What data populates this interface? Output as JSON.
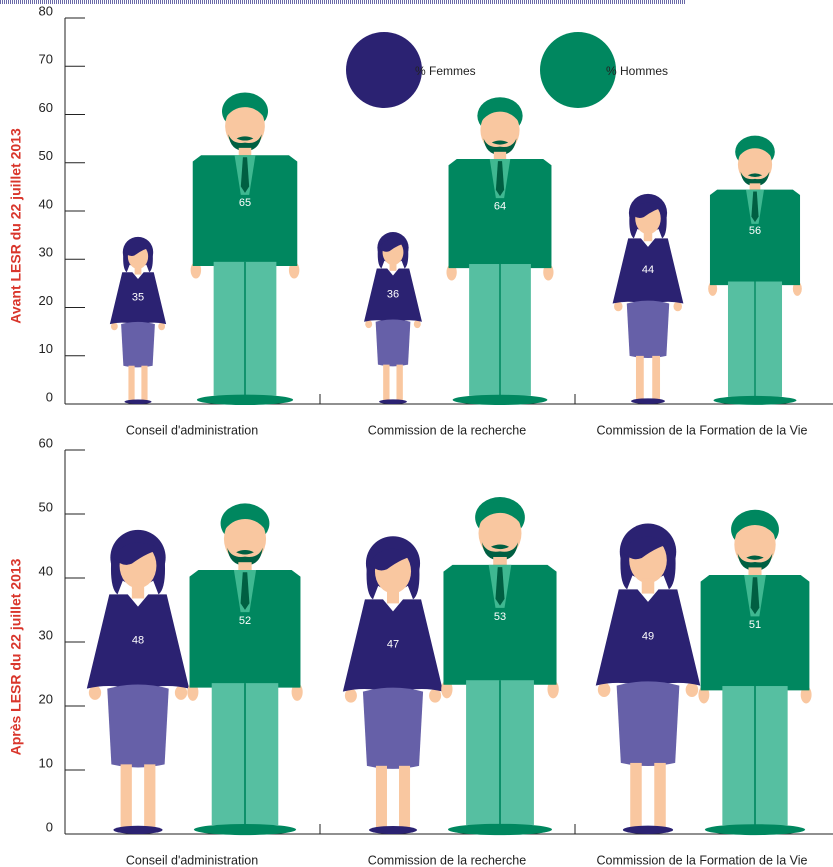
{
  "chart_data": [
    {
      "type": "pictograph",
      "ylabel": "Avant LESR du 22 juillet 2013",
      "categories": [
        "Conseil d'administration",
        "Commission de la recherche",
        "Commission de la Formation de la Vie"
      ],
      "series": [
        {
          "name": "% Femmes",
          "color": "#2b2272",
          "values": [
            35,
            36,
            44
          ]
        },
        {
          "name": "% Hommes",
          "color": "#00875f",
          "values": [
            65,
            64,
            56
          ]
        }
      ],
      "ylim": [
        0,
        80
      ],
      "yticks": [
        0,
        10,
        20,
        30,
        40,
        50,
        60,
        70,
        80
      ],
      "legend": "top"
    },
    {
      "type": "pictograph",
      "ylabel": "Après LESR du 22 juillet 2013",
      "categories": [
        "Conseil d'administration",
        "Commission de la recherche",
        "Commission de la Formation de la Vie"
      ],
      "series": [
        {
          "color": "#2b2272",
          "values": [
            48,
            47,
            49
          ]
        },
        {
          "color": "#00875f",
          "values": [
            52,
            53,
            51
          ]
        }
      ],
      "ylim": [
        0,
        60
      ],
      "yticks": [
        0,
        10,
        20,
        30,
        40,
        50,
        60
      ]
    }
  ]
}
